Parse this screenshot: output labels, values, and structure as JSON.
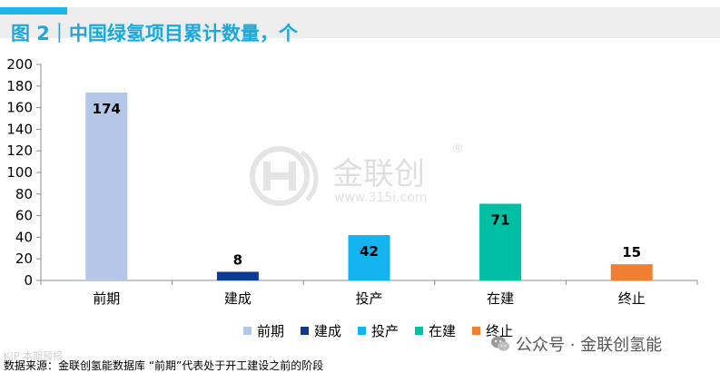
{
  "header": {
    "title": "图 2｜中国绿氢项目累计数量，个"
  },
  "watermark": {
    "brand": "金联创",
    "url": "www.315i.com",
    "reg": "®"
  },
  "chart_data": {
    "type": "bar",
    "categories": [
      "前期",
      "建成",
      "投产",
      "在建",
      "终止"
    ],
    "values": [
      174,
      8,
      42,
      71,
      15
    ],
    "colors": [
      "#b4c7e7",
      "#0b3c91",
      "#14b4f0",
      "#00bfa5",
      "#ef7f32"
    ],
    "title": "中国绿氢项目累计数量，个",
    "xlabel": "",
    "ylabel": "",
    "ylim": [
      0,
      200
    ],
    "yticks": [
      0,
      20,
      40,
      60,
      80,
      100,
      120,
      140,
      160,
      180,
      200
    ],
    "grid": false,
    "legend": "bottom",
    "data_labels": true
  },
  "legend": {
    "items": [
      {
        "label": "前期",
        "color": "#b4c7e7"
      },
      {
        "label": "建成",
        "color": "#0b3c91"
      },
      {
        "label": "投产",
        "color": "#14b4f0"
      },
      {
        "label": "在建",
        "color": "#00bfa5"
      },
      {
        "label": "终止",
        "color": "#ef7f32"
      }
    ]
  },
  "footer": {
    "wechat": "公众号 · 金联创氢能",
    "faint_left": "K|P 本期预报",
    "source": "数据来源：金联创氢能数据库   “前期”代表处于开工建设之前的阶段"
  }
}
